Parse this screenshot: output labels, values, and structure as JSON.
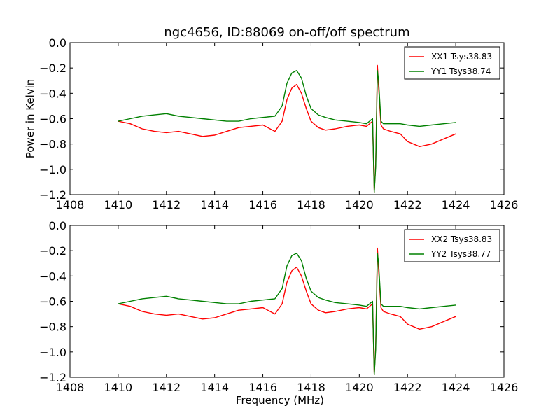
{
  "chart_data": [
    {
      "type": "line",
      "title": "ngc4656, ID:88069 on-off/off spectrum",
      "xlabel": "",
      "ylabel": "Power in Kelvin",
      "xlim": [
        1408,
        1426
      ],
      "ylim": [
        -1.2,
        0.0
      ],
      "xticks": [
        "1408",
        "1410",
        "1412",
        "1414",
        "1416",
        "1418",
        "1420",
        "1422",
        "1424",
        "1426"
      ],
      "yticks": [
        "0.0",
        "−0.2",
        "−0.4",
        "−0.6",
        "−0.8",
        "−1.0",
        "−1.2"
      ],
      "legend_position": "top-right",
      "series": [
        {
          "name": "XX1 Tsys38.83",
          "color": "#ff0000",
          "x": [
            1410.0,
            1410.5,
            1411.0,
            1411.5,
            1412.0,
            1412.5,
            1413.0,
            1413.5,
            1414.0,
            1414.5,
            1415.0,
            1415.5,
            1416.0,
            1416.5,
            1416.8,
            1417.0,
            1417.2,
            1417.4,
            1417.6,
            1417.8,
            1418.0,
            1418.3,
            1418.6,
            1419.0,
            1419.5,
            1420.0,
            1420.3,
            1420.55,
            1420.62,
            1420.68,
            1420.75,
            1420.8,
            1420.9,
            1421.0,
            1421.3,
            1421.7,
            1422.0,
            1422.5,
            1423.0,
            1423.5,
            1424.0
          ],
          "y": [
            -0.62,
            -0.64,
            -0.68,
            -0.7,
            -0.71,
            -0.7,
            -0.72,
            -0.74,
            -0.73,
            -0.7,
            -0.67,
            -0.66,
            -0.65,
            -0.7,
            -0.62,
            -0.45,
            -0.36,
            -0.33,
            -0.4,
            -0.52,
            -0.62,
            -0.67,
            -0.69,
            -0.68,
            -0.66,
            -0.65,
            -0.66,
            -0.62,
            -1.18,
            -0.95,
            -0.18,
            -0.35,
            -0.65,
            -0.68,
            -0.7,
            -0.72,
            -0.78,
            -0.82,
            -0.8,
            -0.76,
            -0.72
          ]
        },
        {
          "name": "YY1 Tsys38.74",
          "color": "#008000",
          "x": [
            1410.0,
            1410.5,
            1411.0,
            1411.5,
            1412.0,
            1412.5,
            1413.0,
            1413.5,
            1414.0,
            1414.5,
            1415.0,
            1415.5,
            1416.0,
            1416.5,
            1416.8,
            1417.0,
            1417.2,
            1417.4,
            1417.6,
            1417.8,
            1418.0,
            1418.3,
            1418.6,
            1419.0,
            1419.5,
            1420.0,
            1420.3,
            1420.55,
            1420.62,
            1420.68,
            1420.75,
            1420.8,
            1420.9,
            1421.0,
            1421.3,
            1421.7,
            1422.0,
            1422.5,
            1423.0,
            1423.5,
            1424.0
          ],
          "y": [
            -0.62,
            -0.6,
            -0.58,
            -0.57,
            -0.56,
            -0.58,
            -0.59,
            -0.6,
            -0.61,
            -0.62,
            -0.62,
            -0.6,
            -0.59,
            -0.58,
            -0.5,
            -0.32,
            -0.24,
            -0.22,
            -0.28,
            -0.42,
            -0.52,
            -0.57,
            -0.59,
            -0.61,
            -0.62,
            -0.63,
            -0.64,
            -0.6,
            -1.18,
            -0.98,
            -0.22,
            -0.3,
            -0.62,
            -0.64,
            -0.64,
            -0.64,
            -0.65,
            -0.66,
            -0.65,
            -0.64,
            -0.63
          ]
        }
      ]
    },
    {
      "type": "line",
      "title": "",
      "xlabel": "Frequency (MHz)",
      "ylabel": "",
      "xlim": [
        1408,
        1426
      ],
      "ylim": [
        -1.2,
        0.0
      ],
      "xticks": [
        "1408",
        "1410",
        "1412",
        "1414",
        "1416",
        "1418",
        "1420",
        "1422",
        "1424",
        "1426"
      ],
      "yticks": [
        "0.0",
        "−0.2",
        "−0.4",
        "−0.6",
        "−0.8",
        "−1.0",
        "−1.2"
      ],
      "legend_position": "top-right",
      "series": [
        {
          "name": "XX2 Tsys38.83",
          "color": "#ff0000",
          "x": [
            1410.0,
            1410.5,
            1411.0,
            1411.5,
            1412.0,
            1412.5,
            1413.0,
            1413.5,
            1414.0,
            1414.5,
            1415.0,
            1415.5,
            1416.0,
            1416.5,
            1416.8,
            1417.0,
            1417.2,
            1417.4,
            1417.6,
            1417.8,
            1418.0,
            1418.3,
            1418.6,
            1419.0,
            1419.5,
            1420.0,
            1420.3,
            1420.55,
            1420.62,
            1420.68,
            1420.75,
            1420.8,
            1420.9,
            1421.0,
            1421.3,
            1421.7,
            1422.0,
            1422.5,
            1423.0,
            1423.5,
            1424.0
          ],
          "y": [
            -0.62,
            -0.64,
            -0.68,
            -0.7,
            -0.71,
            -0.7,
            -0.72,
            -0.74,
            -0.73,
            -0.7,
            -0.67,
            -0.66,
            -0.65,
            -0.7,
            -0.62,
            -0.45,
            -0.36,
            -0.33,
            -0.4,
            -0.52,
            -0.62,
            -0.67,
            -0.69,
            -0.68,
            -0.66,
            -0.65,
            -0.66,
            -0.62,
            -1.18,
            -0.95,
            -0.18,
            -0.35,
            -0.65,
            -0.68,
            -0.7,
            -0.72,
            -0.78,
            -0.82,
            -0.8,
            -0.76,
            -0.72
          ]
        },
        {
          "name": "YY2 Tsys38.77",
          "color": "#008000",
          "x": [
            1410.0,
            1410.5,
            1411.0,
            1411.5,
            1412.0,
            1412.5,
            1413.0,
            1413.5,
            1414.0,
            1414.5,
            1415.0,
            1415.5,
            1416.0,
            1416.5,
            1416.8,
            1417.0,
            1417.2,
            1417.4,
            1417.6,
            1417.8,
            1418.0,
            1418.3,
            1418.6,
            1419.0,
            1419.5,
            1420.0,
            1420.3,
            1420.55,
            1420.62,
            1420.68,
            1420.75,
            1420.8,
            1420.9,
            1421.0,
            1421.3,
            1421.7,
            1422.0,
            1422.5,
            1423.0,
            1423.5,
            1424.0
          ],
          "y": [
            -0.62,
            -0.6,
            -0.58,
            -0.57,
            -0.56,
            -0.58,
            -0.59,
            -0.6,
            -0.61,
            -0.62,
            -0.62,
            -0.6,
            -0.59,
            -0.58,
            -0.5,
            -0.32,
            -0.24,
            -0.22,
            -0.28,
            -0.42,
            -0.52,
            -0.57,
            -0.59,
            -0.61,
            -0.62,
            -0.63,
            -0.64,
            -0.6,
            -1.18,
            -0.98,
            -0.22,
            -0.3,
            -0.62,
            -0.64,
            -0.64,
            -0.64,
            -0.65,
            -0.66,
            -0.65,
            -0.64,
            -0.63
          ]
        }
      ]
    }
  ]
}
